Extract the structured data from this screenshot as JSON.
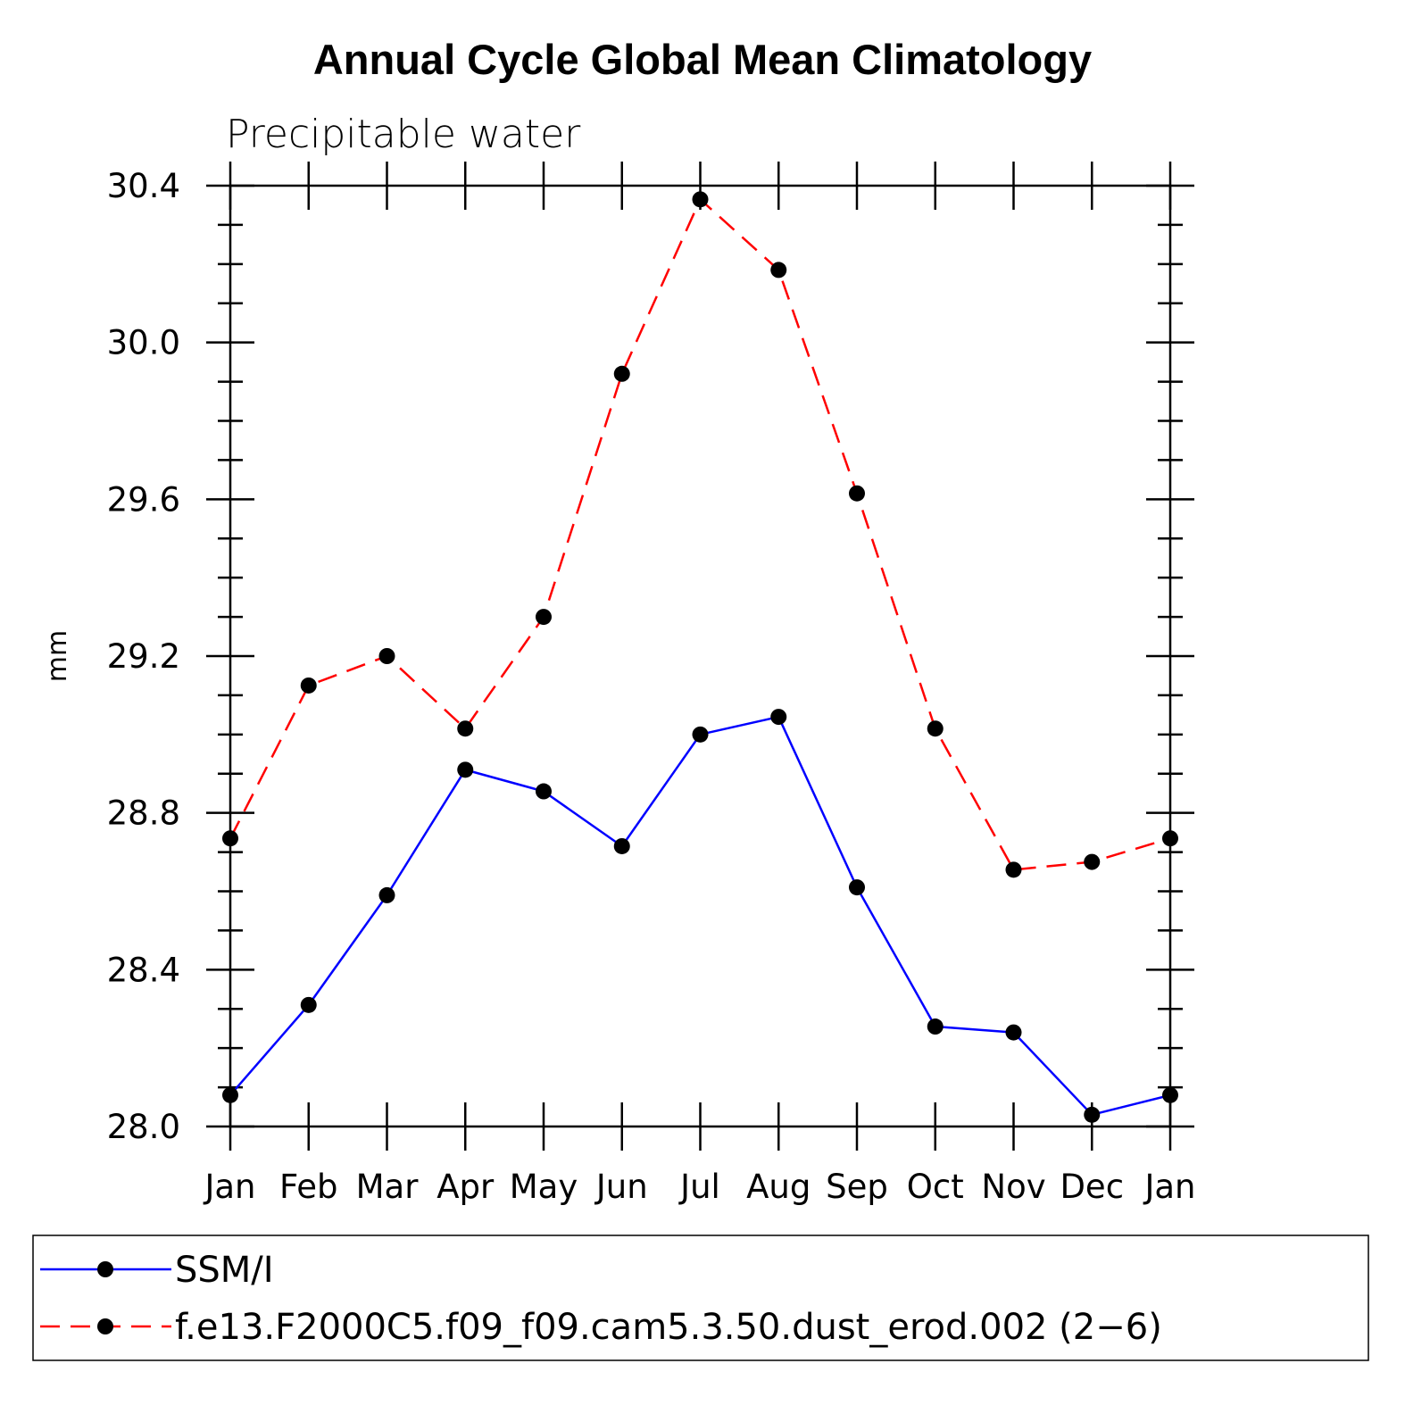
{
  "chart_data": {
    "type": "line",
    "title": "Annual Cycle Global Mean Climatology",
    "subtitle": "Precipitable water",
    "xlabel": "",
    "ylabel": "mm",
    "categories": [
      "Jan",
      "Feb",
      "Mar",
      "Apr",
      "May",
      "Jun",
      "Jul",
      "Aug",
      "Sep",
      "Oct",
      "Nov",
      "Dec",
      "Jan"
    ],
    "ylim": [
      28.0,
      30.4
    ],
    "yticks": [
      "28.0",
      "28.4",
      "28.8",
      "29.2",
      "29.6",
      "30.0",
      "30.4"
    ],
    "series": [
      {
        "name": "SSM/I",
        "color": "#0000ff",
        "dash": "solid",
        "values": [
          28.08,
          28.31,
          28.59,
          28.91,
          28.855,
          28.715,
          29.0,
          29.045,
          28.61,
          28.255,
          28.24,
          28.03,
          28.08
        ]
      },
      {
        "name": "f.e13.F2000C5.f09_f09.cam5.3.50.dust_erod.002 (2-6)",
        "color": "#ff0000",
        "dash": "dashed",
        "values": [
          28.735,
          29.125,
          29.2,
          29.015,
          29.3,
          29.92,
          30.365,
          30.185,
          29.615,
          29.015,
          28.655,
          28.675,
          28.735
        ]
      }
    ],
    "legend": {
      "position": "bottom",
      "entries": [
        "SSM/I",
        "f.e13.F2000C5.f09_f09.cam5.3.50.dust_erod.002 (2−6)"
      ]
    },
    "grid": false
  }
}
